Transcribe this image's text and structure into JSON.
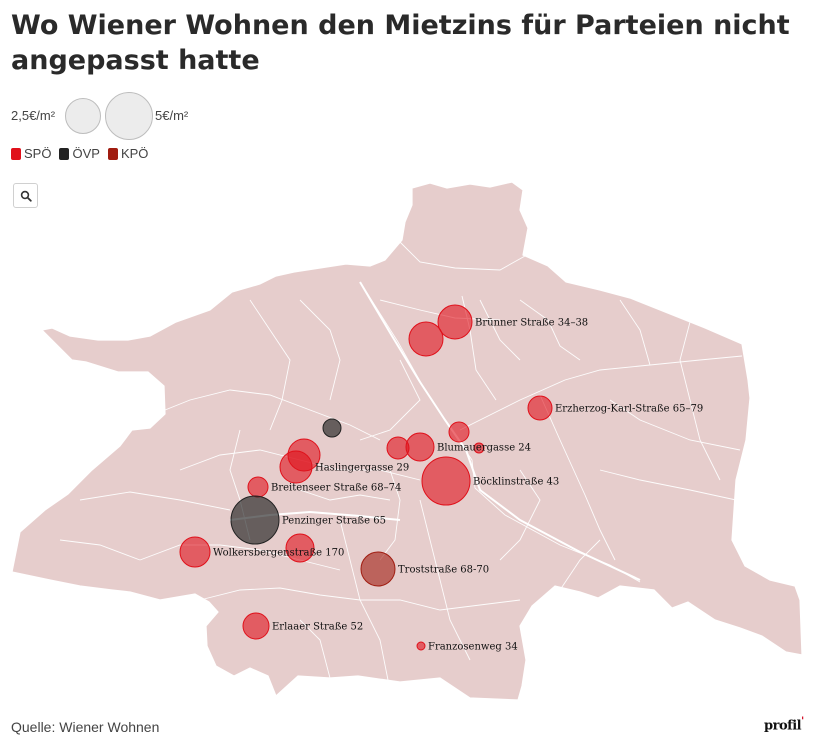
{
  "title": "Wo Wiener Wohnen den Mietzins für Parteien nicht angepasst hatte",
  "size_legend": {
    "small_label": "2,5€/m²",
    "large_label": "5€/m²"
  },
  "parties": [
    {
      "name": "SPÖ",
      "color": "#e0101a"
    },
    {
      "name": "ÖVP",
      "color": "#222222"
    },
    {
      "name": "KPÖ",
      "color": "#a01c10"
    }
  ],
  "search_icon": "search-icon",
  "map_colors": {
    "land": "#e6cdcc",
    "border": "#ffffff",
    "spo": "#e0101a",
    "ovp": "#222222",
    "kpo": "#a01c10"
  },
  "locations": [
    {
      "label": "Brünner Straße 34–38",
      "party": "SPÖ"
    },
    {
      "label": "",
      "party": "SPÖ"
    },
    {
      "label": "Erzherzog-Karl-Straße 65–79",
      "party": "SPÖ"
    },
    {
      "label": "",
      "party": "ÖVP"
    },
    {
      "label": "",
      "party": "SPÖ"
    },
    {
      "label": "Blumauergasse 24",
      "party": "SPÖ"
    },
    {
      "label": "",
      "party": "SPÖ"
    },
    {
      "label": "",
      "party": "SPÖ"
    },
    {
      "label": "Haslingergasse 29",
      "party": "SPÖ"
    },
    {
      "label": "",
      "party": "SPÖ"
    },
    {
      "label": "Böcklinstraße 43",
      "party": "SPÖ"
    },
    {
      "label": "Breitenseer Straße 68–74",
      "party": "SPÖ"
    },
    {
      "label": "Penzinger Straße 65",
      "party": "ÖVP"
    },
    {
      "label": "Wolkersbergenstraße 170",
      "party": "SPÖ"
    },
    {
      "label": "",
      "party": "SPÖ"
    },
    {
      "label": "Troststraße 68-70",
      "party": "KPÖ"
    },
    {
      "label": "Erlaaer Straße 52",
      "party": "SPÖ"
    },
    {
      "label": "Franzosenweg 34",
      "party": "SPÖ"
    }
  ],
  "source": "Quelle: Wiener Wohnen",
  "logo": {
    "text": "profil",
    "mark": "'"
  }
}
